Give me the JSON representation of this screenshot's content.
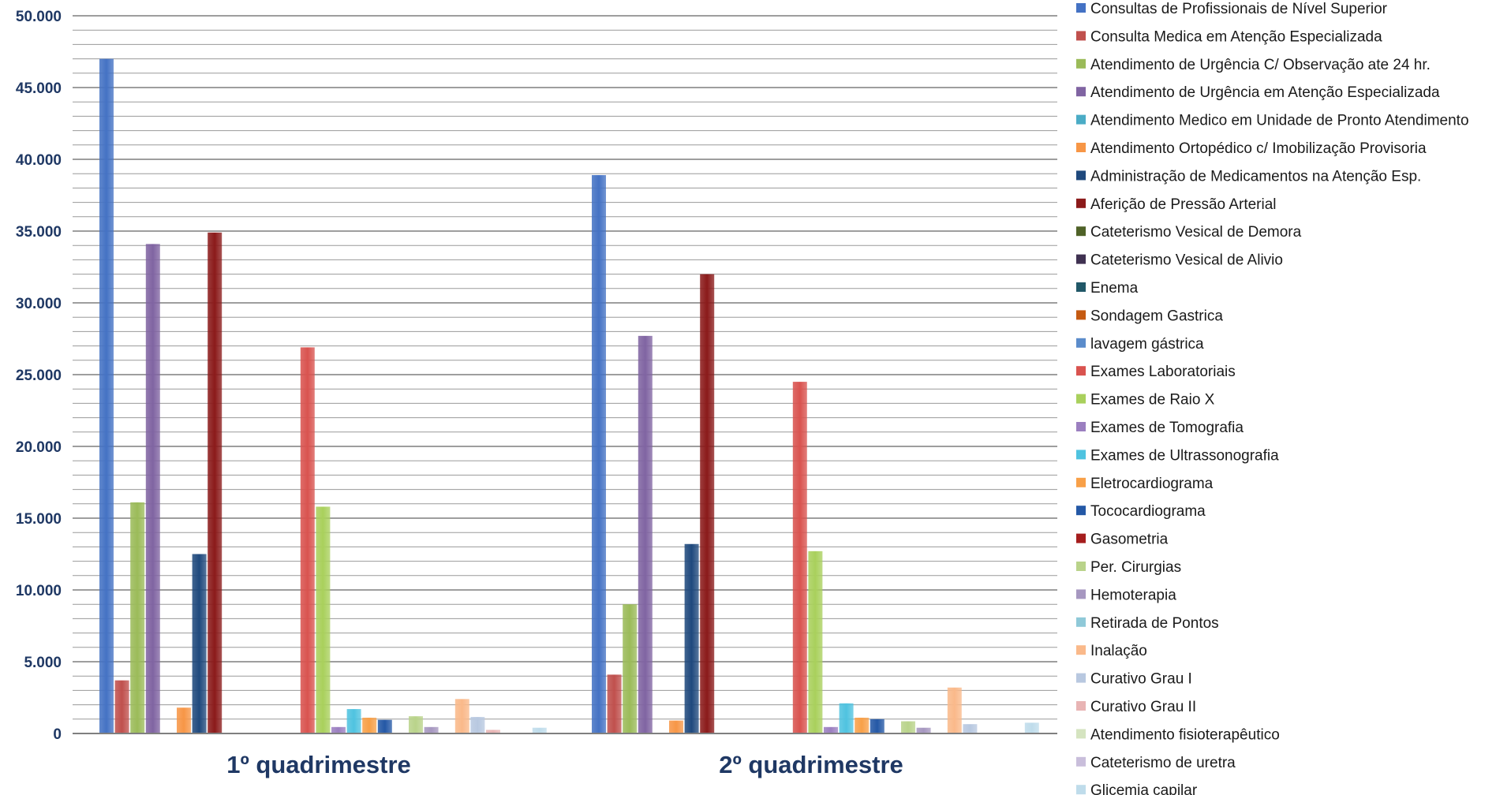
{
  "chart_data": {
    "type": "bar",
    "title": "",
    "xlabel": "",
    "ylabel": "",
    "ylim": [
      0,
      50000
    ],
    "y_major_ticks": [
      "0",
      "5.000",
      "10.000",
      "15.000",
      "20.000",
      "25.000",
      "30.000",
      "35.000",
      "40.000",
      "45.000",
      "50.000"
    ],
    "y_minor_step": 1000,
    "grid": true,
    "legend_position": "right",
    "categories": [
      "1º quadrimestre",
      "2º quadrimestre"
    ],
    "series": [
      {
        "name": "Consultas de Profissionais de Nível Superior",
        "color": "#4472C4",
        "values": [
          47000,
          38900
        ]
      },
      {
        "name": "Consulta Medica em Atenção Especializada",
        "color": "#C0504D",
        "values": [
          3700,
          4100
        ]
      },
      {
        "name": "Atendimento de Urgência C/ Observação ate 24 hr.",
        "color": "#9BBB59",
        "values": [
          16100,
          9000
        ]
      },
      {
        "name": "Atendimento de Urgência em Atenção Especializada",
        "color": "#8064A2",
        "values": [
          34100,
          27700
        ]
      },
      {
        "name": "Atendimento Medico em Unidade de Pronto Atendimento",
        "color": "#4BACC6",
        "values": [
          0,
          0
        ]
      },
      {
        "name": "Atendimento Ortopédico c/ Imobilização Provisoria",
        "color": "#F79646",
        "values": [
          1800,
          900
        ]
      },
      {
        "name": "Administração de Medicamentos na Atenção Esp.",
        "color": "#1F497D",
        "values": [
          12500,
          13200
        ]
      },
      {
        "name": "Aferição de Pressão Arterial",
        "color": "#8B1A1A",
        "values": [
          34900,
          32000
        ]
      },
      {
        "name": "Cateterismo Vesical de Demora",
        "color": "#4F6228",
        "values": [
          0,
          0
        ]
      },
      {
        "name": "Cateterismo Vesical de Alivio",
        "color": "#3F3151",
        "values": [
          0,
          0
        ]
      },
      {
        "name": "Enema",
        "color": "#215868",
        "values": [
          0,
          0
        ]
      },
      {
        "name": "Sondagem Gastrica",
        "color": "#C55A11",
        "values": [
          0,
          0
        ]
      },
      {
        "name": "lavagem gástrica",
        "color": "#5B8CCB",
        "values": [
          0,
          0
        ]
      },
      {
        "name": "Exames Laboratoriais",
        "color": "#D9534F",
        "values": [
          26900,
          24500
        ]
      },
      {
        "name": "Exames de Raio X",
        "color": "#A9D05C",
        "values": [
          15800,
          12700
        ]
      },
      {
        "name": "Exames de Tomografia",
        "color": "#9B7FC0",
        "values": [
          450,
          450
        ]
      },
      {
        "name": "Exames de Ultrassonografia",
        "color": "#4FC3E0",
        "values": [
          1700,
          2100
        ]
      },
      {
        "name": "Eletrocardiograma",
        "color": "#F8A048",
        "values": [
          1100,
          1100
        ]
      },
      {
        "name": "Tococardiograma",
        "color": "#2458A6",
        "values": [
          950,
          1000
        ]
      },
      {
        "name": "Gasometria",
        "color": "#A51D1D",
        "values": [
          0,
          0
        ]
      },
      {
        "name": "Per. Cirurgias",
        "color": "#B9D38A",
        "values": [
          1200,
          850
        ]
      },
      {
        "name": "Hemoterapia",
        "color": "#A697C0",
        "values": [
          450,
          400
        ]
      },
      {
        "name": "Retirada de Pontos",
        "color": "#8FC9D8",
        "values": [
          0,
          0
        ]
      },
      {
        "name": "Inalação",
        "color": "#FAB98A",
        "values": [
          2400,
          3200
        ]
      },
      {
        "name": "Curativo Grau I",
        "color": "#B8C8E0",
        "values": [
          1150,
          650
        ]
      },
      {
        "name": "Curativo Grau II",
        "color": "#E8B4B4",
        "values": [
          250,
          0
        ]
      },
      {
        "name": "Atendimento fisioterapêutico",
        "color": "#D5E4C0",
        "values": [
          0,
          0
        ]
      },
      {
        "name": "Cateterismo de uretra",
        "color": "#C9BEDB",
        "values": [
          0,
          0
        ]
      },
      {
        "name": "Glicemia capilar",
        "color": "#BFDCEB",
        "values": [
          400,
          750
        ]
      }
    ]
  }
}
